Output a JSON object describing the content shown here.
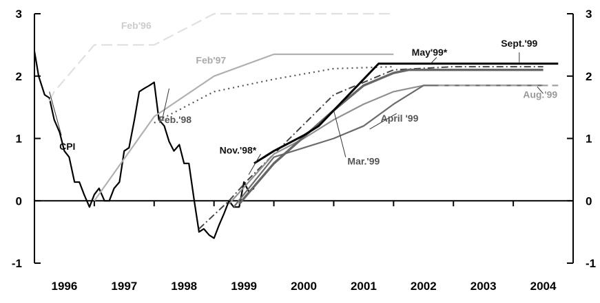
{
  "chart_data": {
    "type": "line",
    "title": "",
    "xlabel": "",
    "ylabel": "",
    "xlim": [
      1996,
      2005
    ],
    "ylim": [
      -1,
      3
    ],
    "y_ticks": [
      "-1",
      "0",
      "1",
      "2",
      "3"
    ],
    "x_ticks": [
      "1996",
      "1997",
      "1998",
      "1999",
      "2000",
      "2001",
      "2002",
      "2003",
      "2004"
    ],
    "grid": false,
    "legend": "none",
    "series": [
      {
        "name": "CPI",
        "color": "#000000",
        "dash": "solid",
        "width": 2.2,
        "label_at": [
          1996.55,
          0.82
        ],
        "points": [
          [
            1996.0,
            2.4
          ],
          [
            1996.07,
            2.0
          ],
          [
            1996.17,
            1.7
          ],
          [
            1996.25,
            1.65
          ],
          [
            1996.33,
            1.3
          ],
          [
            1996.42,
            1.1
          ],
          [
            1996.5,
            0.8
          ],
          [
            1996.58,
            0.7
          ],
          [
            1996.67,
            0.3
          ],
          [
            1996.75,
            0.3
          ],
          [
            1996.83,
            0.1
          ],
          [
            1996.92,
            -0.1
          ],
          [
            1997.0,
            0.1
          ],
          [
            1997.08,
            0.2
          ],
          [
            1997.17,
            0.0
          ],
          [
            1997.25,
            0.0
          ],
          [
            1997.33,
            0.2
          ],
          [
            1997.42,
            0.3
          ],
          [
            1997.5,
            0.8
          ],
          [
            1997.58,
            0.85
          ],
          [
            1997.67,
            1.3
          ],
          [
            1997.75,
            1.75
          ],
          [
            1997.83,
            1.8
          ],
          [
            1997.92,
            1.85
          ],
          [
            1998.0,
            1.9
          ],
          [
            1998.08,
            1.3
          ],
          [
            1998.17,
            1.2
          ],
          [
            1998.25,
            0.95
          ],
          [
            1998.33,
            0.8
          ],
          [
            1998.42,
            0.9
          ],
          [
            1998.5,
            0.6
          ],
          [
            1998.58,
            0.6
          ],
          [
            1998.67,
            0.0
          ],
          [
            1998.75,
            -0.5
          ],
          [
            1998.83,
            -0.45
          ],
          [
            1998.92,
            -0.55
          ],
          [
            1999.0,
            -0.6
          ],
          [
            1999.08,
            -0.4
          ],
          [
            1999.17,
            -0.2
          ],
          [
            1999.25,
            0.0
          ],
          [
            1999.33,
            -0.1
          ],
          [
            1999.42,
            -0.1
          ],
          [
            1999.5,
            0.3
          ],
          [
            1999.58,
            0.15
          ],
          [
            1999.67,
            0.2
          ]
        ]
      },
      {
        "name": "Feb'96",
        "color": "#e0e0e0",
        "dash": "long",
        "width": 2.2,
        "label_at": [
          1997.7,
          2.76
        ],
        "points": [
          [
            1996.25,
            1.6
          ],
          [
            1996.33,
            1.75
          ],
          [
            1997.0,
            2.5
          ],
          [
            1998.0,
            2.5
          ],
          [
            1999.0,
            3.0
          ],
          [
            2002.0,
            3.0
          ]
        ]
      },
      {
        "name": "Feb'97",
        "color": "#b0b0b0",
        "dash": "solid",
        "width": 2.2,
        "label_at": [
          1998.95,
          2.2
        ],
        "points": [
          [
            1997.0,
            0.0
          ],
          [
            1998.0,
            1.35
          ],
          [
            1999.0,
            2.0
          ],
          [
            2000.0,
            2.35
          ],
          [
            2002.0,
            2.35
          ]
        ]
      },
      {
        "name": "Feb.'98",
        "color": "#555555",
        "dash": "dot",
        "width": 2.2,
        "label_at": [
          1998.35,
          1.25
        ],
        "points": [
          [
            1998.0,
            1.25
          ],
          [
            1999.0,
            1.75
          ],
          [
            2000.0,
            1.95
          ],
          [
            2001.0,
            2.12
          ],
          [
            2002.0,
            2.15
          ]
        ]
      },
      {
        "name": "Nov.'98*",
        "color": "#444444",
        "dash": "dashdot",
        "width": 2.0,
        "label_at": [
          1999.4,
          0.76
        ],
        "points": [
          [
            1998.75,
            -0.45
          ],
          [
            1999.25,
            0.0
          ],
          [
            1999.58,
            0.35
          ],
          [
            2000.0,
            0.75
          ],
          [
            2001.0,
            1.7
          ],
          [
            2002.0,
            2.1
          ],
          [
            2003.0,
            2.15
          ],
          [
            2004.5,
            2.15
          ]
        ]
      },
      {
        "name": "Mar.'99",
        "color": "#909090",
        "dash": "solid",
        "width": 2.2,
        "label_at": [
          2001.5,
          0.58
        ],
        "points": [
          [
            1999.25,
            -0.05
          ],
          [
            2000.0,
            0.75
          ],
          [
            2000.5,
            1.0
          ],
          [
            2001.0,
            1.3
          ],
          [
            2001.5,
            1.55
          ],
          [
            2002.0,
            1.75
          ],
          [
            2002.5,
            1.85
          ],
          [
            2004.5,
            1.85
          ]
        ]
      },
      {
        "name": "April '99",
        "color": "#6b6b6b",
        "dash": "solid",
        "width": 2.2,
        "label_at": [
          2002.1,
          1.27
        ],
        "points": [
          [
            1999.33,
            -0.1
          ],
          [
            2000.0,
            0.7
          ],
          [
            2000.5,
            0.85
          ],
          [
            2001.0,
            1.0
          ],
          [
            2001.5,
            1.2
          ],
          [
            2002.0,
            1.55
          ],
          [
            2002.5,
            1.85
          ],
          [
            2004.5,
            1.85
          ]
        ]
      },
      {
        "name": "May'99*",
        "color": "#666666",
        "dash": "solid",
        "width": 3.4,
        "label_at": [
          2002.6,
          2.33
        ],
        "points": [
          [
            1999.42,
            -0.05
          ],
          [
            2000.0,
            0.6
          ],
          [
            2001.0,
            1.45
          ],
          [
            2001.5,
            1.85
          ],
          [
            2002.0,
            2.05
          ],
          [
            2002.25,
            2.1
          ],
          [
            2004.5,
            2.1
          ]
        ]
      },
      {
        "name": "Aug.'99",
        "color": "#a0a0a0",
        "dash": "dash",
        "width": 2.2,
        "label_at": [
          2004.45,
          1.65
        ],
        "points": [
          [
            2002.75,
            1.85
          ],
          [
            2004.75,
            1.85
          ]
        ]
      },
      {
        "name": "Sept.'99",
        "color": "#000000",
        "dash": "solid",
        "width": 3.0,
        "label_at": [
          2004.1,
          2.47
        ],
        "points": [
          [
            1999.67,
            0.6
          ],
          [
            2000.0,
            0.8
          ],
          [
            2000.5,
            1.05
          ],
          [
            2000.75,
            1.2
          ],
          [
            2001.0,
            1.45
          ],
          [
            2001.5,
            1.95
          ],
          [
            2001.75,
            2.2
          ],
          [
            2004.75,
            2.2
          ]
        ]
      }
    ],
    "leaders": [
      {
        "from": [
          1996.25,
          1.75
        ],
        "to": [
          1996.45,
          1.05
        ]
      },
      {
        "from": [
          1998.25,
          1.8
        ],
        "to": [
          1998.13,
          1.28
        ]
      },
      {
        "from": [
          1999.78,
          0.75
        ],
        "to": [
          1999.58,
          0.42
        ]
      },
      {
        "from": [
          2001.2,
          0.7
        ],
        "to": [
          2001.0,
          1.45
        ]
      },
      {
        "from": [
          2002.05,
          1.4
        ],
        "to": [
          2001.6,
          1.15
        ]
      },
      {
        "from": [
          2002.72,
          2.3
        ],
        "to": [
          2002.62,
          2.2
        ]
      },
      {
        "from": [
          2004.1,
          2.38
        ],
        "to": [
          2004.1,
          2.22
        ]
      },
      {
        "from": [
          2004.5,
          1.72
        ],
        "to": [
          2004.4,
          1.83
        ]
      }
    ]
  }
}
